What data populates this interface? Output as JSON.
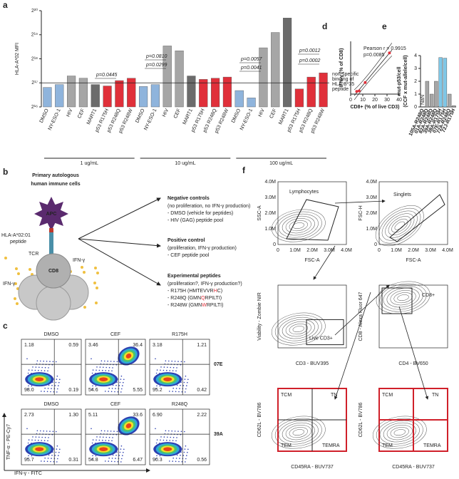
{
  "panel_labels": [
    "a",
    "b",
    "c",
    "d",
    "e",
    "f"
  ],
  "chart_data": [
    {
      "type": "bar",
      "y_label": "HLA-A*02 MFI",
      "log_scale": true,
      "categories": [
        "DMSO",
        "NY-ESO-1",
        "HIV",
        "CEF",
        "MART1",
        "p53 R175H",
        "p53 R248Q",
        "p53 R248W",
        "DMSO",
        "NY-ESO-1",
        "HIV",
        "CEF",
        "MART1",
        "p53 R175H",
        "p53 R248Q",
        "p53 R248W",
        "DMSO",
        "NY-ESO-1",
        "HIV",
        "CEF",
        "MART1",
        "p53 R175H",
        "p53 R248Q",
        "p53 R248W"
      ],
      "values": [
        115000,
        125000,
        160000,
        150000,
        125000,
        120000,
        140000,
        150000,
        118000,
        125000,
        380000,
        330000,
        160000,
        145000,
        150000,
        155000,
        105000,
        85000,
        360000,
        560000,
        850000,
        110000,
        155000,
        175000
      ],
      "colors": [
        "#8fb4dc",
        "#8fb4dc",
        "#a6a6a6",
        "#a6a6a6",
        "#6b6b6b",
        "#e0303a",
        "#e0303a",
        "#e0303a",
        "#8fb4dc",
        "#8fb4dc",
        "#a6a6a6",
        "#a6a6a6",
        "#6b6b6b",
        "#e0303a",
        "#e0303a",
        "#e0303a",
        "#8fb4dc",
        "#8fb4dc",
        "#a6a6a6",
        "#a6a6a6",
        "#6b6b6b",
        "#e0303a",
        "#e0303a",
        "#e0303a"
      ],
      "groups": [
        "1 ug/mL",
        "10 ug/mL",
        "100 ug/mL"
      ],
      "ylim": [
        65536,
        1048576
      ],
      "yticks": [
        {
          "value": 65536,
          "label": "2¹⁶"
        },
        {
          "value": 131072,
          "label": "2¹⁷"
        },
        {
          "value": 262144,
          "label": "2¹⁸"
        },
        {
          "value": 524288,
          "label": "2¹⁹"
        },
        {
          "value": 1048576,
          "label": "2²⁰"
        }
      ],
      "reference_line": {
        "value": 131072,
        "label": [
          "non-specific",
          "binding of",
          "HLA-B*35",
          "peptide"
        ]
      },
      "annotations": [
        "p=0.0445",
        "p=0.0810",
        "p=0.0299",
        "p=0.0057",
        "p=0.0041",
        "p=0.0012",
        "p=0.0002"
      ]
    },
    {
      "type": "scatter",
      "x_label": "CD8+ (% of live CD3)",
      "y_label": "IFN-γ (% of CD8)",
      "color": "#e0303a",
      "x": [
        5,
        7,
        12,
        32
      ],
      "values": [
        0.5,
        0.6,
        2.2,
        7.8
      ],
      "xlim": [
        0,
        40
      ],
      "xticks": [
        0,
        10,
        20,
        30,
        40
      ],
      "ylim": [
        0,
        10
      ],
      "annotations": [
        "Pearson r = 0.9915",
        "p=0.0085"
      ]
    },
    {
      "type": "bar",
      "y_label": [
        "mut-p53/cell",
        "(CCF x mut-allele/cell)"
      ],
      "categories": [
        "105A-R248Q",
        "01A-R248Q",
        "82A-R248Q",
        "39A-R248Q",
        "38A-R175H",
        "07E-R175H",
        "72A-R248Q",
        "72J-R175H"
      ],
      "values": [
        null,
        2,
        1,
        2,
        3.85,
        3.8,
        1,
        0.1
      ],
      "colors": [
        "#a6a6a6",
        "#a6a6a6",
        "#a6a6a6",
        "#a6a6a6",
        "#7fc8e8",
        "#7fc8e8",
        "#a6a6a6",
        "#a6a6a6"
      ],
      "ylim": [
        0,
        4
      ],
      "yticks": [
        0,
        1,
        2,
        3,
        4
      ],
      "annotation": "NaN"
    }
  ],
  "panel_b": {
    "title": [
      "Primary autologous",
      "human immune cells"
    ],
    "apc": "APC",
    "hla": [
      "HLA-A*02:01",
      "peptide"
    ],
    "tcr": "TCR",
    "cd8": "CD8",
    "ifn": [
      "IFN-γ",
      "IFN-γ"
    ],
    "groups": [
      {
        "title": "Negative controls",
        "lines": [
          [
            "(no proliferation, no IFN-γ production)"
          ],
          [
            "- DMSO (vehicle for peptides)"
          ],
          [
            "- HIV (GAG) peptide pool"
          ]
        ]
      },
      {
        "title": "Positive control",
        "lines": [
          [
            "(proliferation, IFN-γ production)"
          ],
          [
            "- CEF peptide pool"
          ]
        ]
      },
      {
        "title": "Experimental peptides",
        "lines": [
          [
            "(proliferation?, IFN-γ production?)"
          ],
          [
            "- R175H (HMTEVVR",
            "H",
            "C)"
          ],
          [
            "- R248Q (GMN",
            "Q",
            "RPILTI)"
          ],
          [
            "- R248W (GMN",
            "W",
            "RPILTI)"
          ]
        ]
      }
    ]
  },
  "panel_c": {
    "y_label": "TNF-α - PE-Cy7",
    "x_label": "IFN-γ - FITC",
    "rows": [
      "07E",
      "39A"
    ],
    "plots": [
      {
        "title": "DMSO",
        "quadrants": [
          "1.18",
          "0.59",
          "98.0",
          "0.19"
        ]
      },
      {
        "title": "CEF",
        "quadrants": [
          "3.46",
          "36.4",
          "54.6",
          "5.55"
        ]
      },
      {
        "title": "R175H",
        "quadrants": [
          "3.18",
          "1.21",
          "95.2",
          "0.42"
        ]
      },
      {
        "title": "DMSO",
        "quadrants": [
          "2.73",
          "1.30",
          "95.7",
          "0.31"
        ]
      },
      {
        "title": "CEF",
        "quadrants": [
          "5.11",
          "33.6",
          "54.8",
          "6.47"
        ]
      },
      {
        "title": "R248Q",
        "quadrants": [
          "6.90",
          "2.22",
          "90.3",
          "0.56"
        ]
      }
    ]
  },
  "panel_f": {
    "scale_ticks": [
      "0",
      "1.0M",
      "2.0M",
      "3.0M",
      "4.0M"
    ],
    "plots": [
      {
        "x_label": "FSC-A",
        "y_label": "SSC-A",
        "gates": [
          "Lymphocytes"
        ]
      },
      {
        "x_label": "FSC-A",
        "y_label": "FSC-H",
        "gates": [
          "Singlets"
        ]
      },
      {
        "x_label": "CD3 - BUV395",
        "y_label": "Viability - Zombie NIR",
        "gates": [
          "Live CD3+"
        ]
      },
      {
        "x_label": "CD4 - BV650",
        "y_label": "CD8 - Alexa Fluor 647",
        "gates": [
          "CD8+"
        ]
      },
      {
        "x_label": "CD45RA - BUV737",
        "y_label": "CD62L - BV786",
        "gates": [
          "TCM",
          "TN",
          "TEM",
          "TEMRA"
        ]
      },
      {
        "x_label": "CD45RA - BUV737",
        "y_label": "CD62L - BV786",
        "gates": [
          "TCM",
          "TN",
          "TEM",
          "TEMRA"
        ]
      }
    ]
  }
}
